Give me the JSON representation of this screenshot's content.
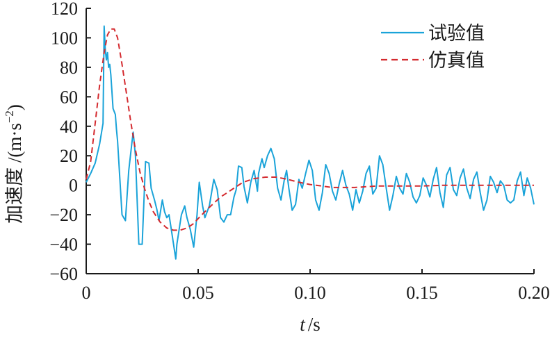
{
  "chart_data": {
    "type": "line",
    "xlabel_var": "t",
    "xlabel_unit": "/s",
    "ylabel": "加速度 /(m·s",
    "ylabel_exp": "−2",
    "ylabel_close": ")",
    "xlim": [
      0,
      0.2
    ],
    "ylim": [
      -60,
      120
    ],
    "x_ticks": [
      0,
      0.05,
      0.1,
      0.15,
      0.2
    ],
    "x_tick_labels": [
      "0",
      "0.05",
      "0.10",
      "0.15",
      "0.20"
    ],
    "y_ticks": [
      -60,
      -40,
      -20,
      0,
      20,
      40,
      60,
      80,
      100,
      120
    ],
    "y_tick_labels": [
      "−60",
      "−40",
      "−20",
      "0",
      "20",
      "40",
      "60",
      "80",
      "100",
      "120"
    ],
    "grid": false,
    "legend_position": "top-right",
    "series": [
      {
        "name": "试验值",
        "color": "#1aa3d9",
        "style": "solid",
        "points": [
          [
            0,
            2
          ],
          [
            0.002,
            8
          ],
          [
            0.004,
            15
          ],
          [
            0.006,
            28
          ],
          [
            0.0075,
            42
          ],
          [
            0.008,
            108
          ],
          [
            0.0085,
            92
          ],
          [
            0.009,
            85
          ],
          [
            0.0095,
            90
          ],
          [
            0.01,
            80
          ],
          [
            0.0105,
            82
          ],
          [
            0.011,
            75
          ],
          [
            0.012,
            52
          ],
          [
            0.0125,
            50
          ],
          [
            0.013,
            48
          ],
          [
            0.0135,
            38
          ],
          [
            0.014,
            30
          ],
          [
            0.016,
            -20
          ],
          [
            0.0175,
            -24
          ],
          [
            0.019,
            10
          ],
          [
            0.0205,
            30
          ],
          [
            0.021,
            36
          ],
          [
            0.022,
            20
          ],
          [
            0.0235,
            -40
          ],
          [
            0.025,
            -40
          ],
          [
            0.0265,
            16
          ],
          [
            0.028,
            15
          ],
          [
            0.029,
            -2
          ],
          [
            0.0305,
            -10
          ],
          [
            0.0315,
            -16
          ],
          [
            0.0325,
            -24
          ],
          [
            0.034,
            -10
          ],
          [
            0.035,
            -18
          ],
          [
            0.036,
            -22
          ],
          [
            0.037,
            -20
          ],
          [
            0.038,
            -30
          ],
          [
            0.039,
            -40
          ],
          [
            0.04,
            -50
          ],
          [
            0.0405,
            -40
          ],
          [
            0.0425,
            -20
          ],
          [
            0.044,
            -14
          ],
          [
            0.045,
            -22
          ],
          [
            0.0465,
            -30
          ],
          [
            0.048,
            -42
          ],
          [
            0.0495,
            -20
          ],
          [
            0.0505,
            2
          ],
          [
            0.052,
            -14
          ],
          [
            0.053,
            -22
          ],
          [
            0.055,
            -14
          ],
          [
            0.057,
            4
          ],
          [
            0.0585,
            -3
          ],
          [
            0.06,
            -22
          ],
          [
            0.0615,
            -25
          ],
          [
            0.063,
            -20
          ],
          [
            0.0645,
            -20
          ],
          [
            0.066,
            -8
          ],
          [
            0.067,
            -3
          ],
          [
            0.068,
            13
          ],
          [
            0.0695,
            12
          ],
          [
            0.0705,
            -1
          ],
          [
            0.072,
            -12
          ],
          [
            0.0735,
            2
          ],
          [
            0.075,
            10
          ],
          [
            0.0765,
            -4
          ],
          [
            0.077,
            8
          ],
          [
            0.0785,
            18
          ],
          [
            0.0795,
            12
          ],
          [
            0.081,
            20
          ],
          [
            0.0825,
            25
          ],
          [
            0.084,
            18
          ],
          [
            0.0855,
            -2
          ],
          [
            0.087,
            -10
          ],
          [
            0.0885,
            4
          ],
          [
            0.0895,
            10
          ],
          [
            0.0905,
            -2
          ],
          [
            0.092,
            -17
          ],
          [
            0.0935,
            -13
          ],
          [
            0.095,
            4
          ],
          [
            0.0965,
            -2
          ],
          [
            0.098,
            8
          ],
          [
            0.0995,
            17
          ],
          [
            0.101,
            10
          ],
          [
            0.1025,
            -10
          ],
          [
            0.104,
            -17
          ],
          [
            0.1055,
            -5
          ],
          [
            0.107,
            14
          ],
          [
            0.1085,
            8
          ],
          [
            0.11,
            -4
          ],
          [
            0.1115,
            -10
          ],
          [
            0.113,
            1
          ],
          [
            0.1145,
            10
          ],
          [
            0.116,
            0
          ],
          [
            0.1175,
            -6
          ],
          [
            0.119,
            -17
          ],
          [
            0.1205,
            -3
          ],
          [
            0.122,
            -12
          ],
          [
            0.1235,
            -4
          ],
          [
            0.125,
            8
          ],
          [
            0.1265,
            13
          ],
          [
            0.128,
            -6
          ],
          [
            0.1295,
            -2
          ],
          [
            0.131,
            20
          ],
          [
            0.1325,
            14
          ],
          [
            0.134,
            -2
          ],
          [
            0.1355,
            -17
          ],
          [
            0.137,
            -7
          ],
          [
            0.1385,
            6
          ],
          [
            0.14,
            -2
          ],
          [
            0.1415,
            -6
          ],
          [
            0.143,
            8
          ],
          [
            0.1445,
            2
          ],
          [
            0.146,
            -8
          ],
          [
            0.1475,
            -12
          ],
          [
            0.149,
            -7
          ],
          [
            0.1505,
            5
          ],
          [
            0.152,
            0
          ],
          [
            0.1535,
            -8
          ],
          [
            0.155,
            4
          ],
          [
            0.1565,
            12
          ],
          [
            0.158,
            -5
          ],
          [
            0.1595,
            -15
          ],
          [
            0.161,
            7
          ],
          [
            0.1625,
            12
          ],
          [
            0.164,
            -3
          ],
          [
            0.1655,
            -7
          ],
          [
            0.167,
            5
          ],
          [
            0.1685,
            11
          ],
          [
            0.17,
            -2
          ],
          [
            0.1715,
            -9
          ],
          [
            0.173,
            4
          ],
          [
            0.1745,
            9
          ],
          [
            0.176,
            -5
          ],
          [
            0.1775,
            -17
          ],
          [
            0.179,
            -10
          ],
          [
            0.1805,
            6
          ],
          [
            0.182,
            2
          ],
          [
            0.1835,
            -5
          ],
          [
            0.185,
            3
          ],
          [
            0.1865,
            0
          ],
          [
            0.188,
            -10
          ],
          [
            0.1895,
            -12
          ],
          [
            0.191,
            -10
          ],
          [
            0.1925,
            3
          ],
          [
            0.194,
            9
          ],
          [
            0.1955,
            -7
          ],
          [
            0.197,
            5
          ],
          [
            0.1985,
            -2
          ],
          [
            0.2,
            -13
          ]
        ]
      },
      {
        "name": "仿真值",
        "color": "#d42a2f",
        "style": "dashed",
        "points": [
          [
            0,
            4
          ],
          [
            0.002,
            16
          ],
          [
            0.004,
            42
          ],
          [
            0.006,
            68
          ],
          [
            0.008,
            90
          ],
          [
            0.0095,
            102
          ],
          [
            0.011,
            106
          ],
          [
            0.0125,
            106
          ],
          [
            0.014,
            100
          ],
          [
            0.016,
            82
          ],
          [
            0.018,
            62
          ],
          [
            0.02,
            42
          ],
          [
            0.022,
            24
          ],
          [
            0.024,
            9
          ],
          [
            0.026,
            -2
          ],
          [
            0.028,
            -11
          ],
          [
            0.03,
            -18
          ],
          [
            0.033,
            -25
          ],
          [
            0.036,
            -29
          ],
          [
            0.039,
            -30.5
          ],
          [
            0.042,
            -30.5
          ],
          [
            0.045,
            -29
          ],
          [
            0.048,
            -26
          ],
          [
            0.051,
            -21
          ],
          [
            0.055,
            -15
          ],
          [
            0.06,
            -8
          ],
          [
            0.065,
            -3
          ],
          [
            0.07,
            2
          ],
          [
            0.075,
            4.5
          ],
          [
            0.08,
            5.5
          ],
          [
            0.085,
            5.5
          ],
          [
            0.09,
            4
          ],
          [
            0.095,
            2
          ],
          [
            0.1,
            0.5
          ],
          [
            0.105,
            -0.5
          ],
          [
            0.11,
            -1.5
          ],
          [
            0.115,
            -1.5
          ],
          [
            0.12,
            -1.5
          ],
          [
            0.125,
            -1
          ],
          [
            0.13,
            -0.5
          ],
          [
            0.14,
            -0.5
          ],
          [
            0.15,
            -0.5
          ],
          [
            0.16,
            0
          ],
          [
            0.17,
            0
          ],
          [
            0.18,
            0
          ],
          [
            0.19,
            0
          ],
          [
            0.2,
            0
          ]
        ]
      }
    ]
  }
}
